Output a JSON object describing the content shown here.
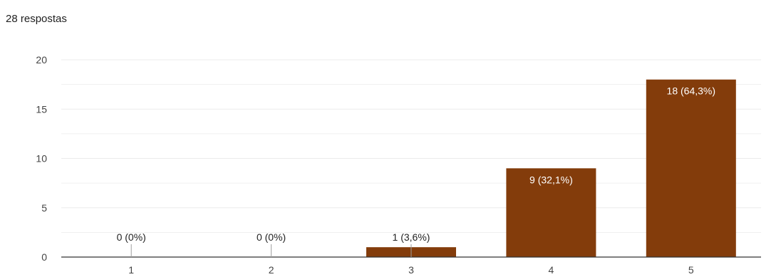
{
  "header": {
    "responses": "28 respostas"
  },
  "chart_data": {
    "type": "bar",
    "categories": [
      "1",
      "2",
      "3",
      "4",
      "5"
    ],
    "values": [
      0,
      0,
      1,
      9,
      18
    ],
    "data_labels": [
      "0 (0%)",
      "0 (0%)",
      "1 (3,6%)",
      "9 (32,1%)",
      "18 (64,3%)"
    ],
    "y_ticks": [
      0,
      5,
      10,
      15,
      20
    ],
    "ylim": [
      0,
      20
    ],
    "grid": true,
    "bar_color": "#833c0b",
    "gridline_color": "#ebebeb",
    "axis_color": "#333333"
  }
}
